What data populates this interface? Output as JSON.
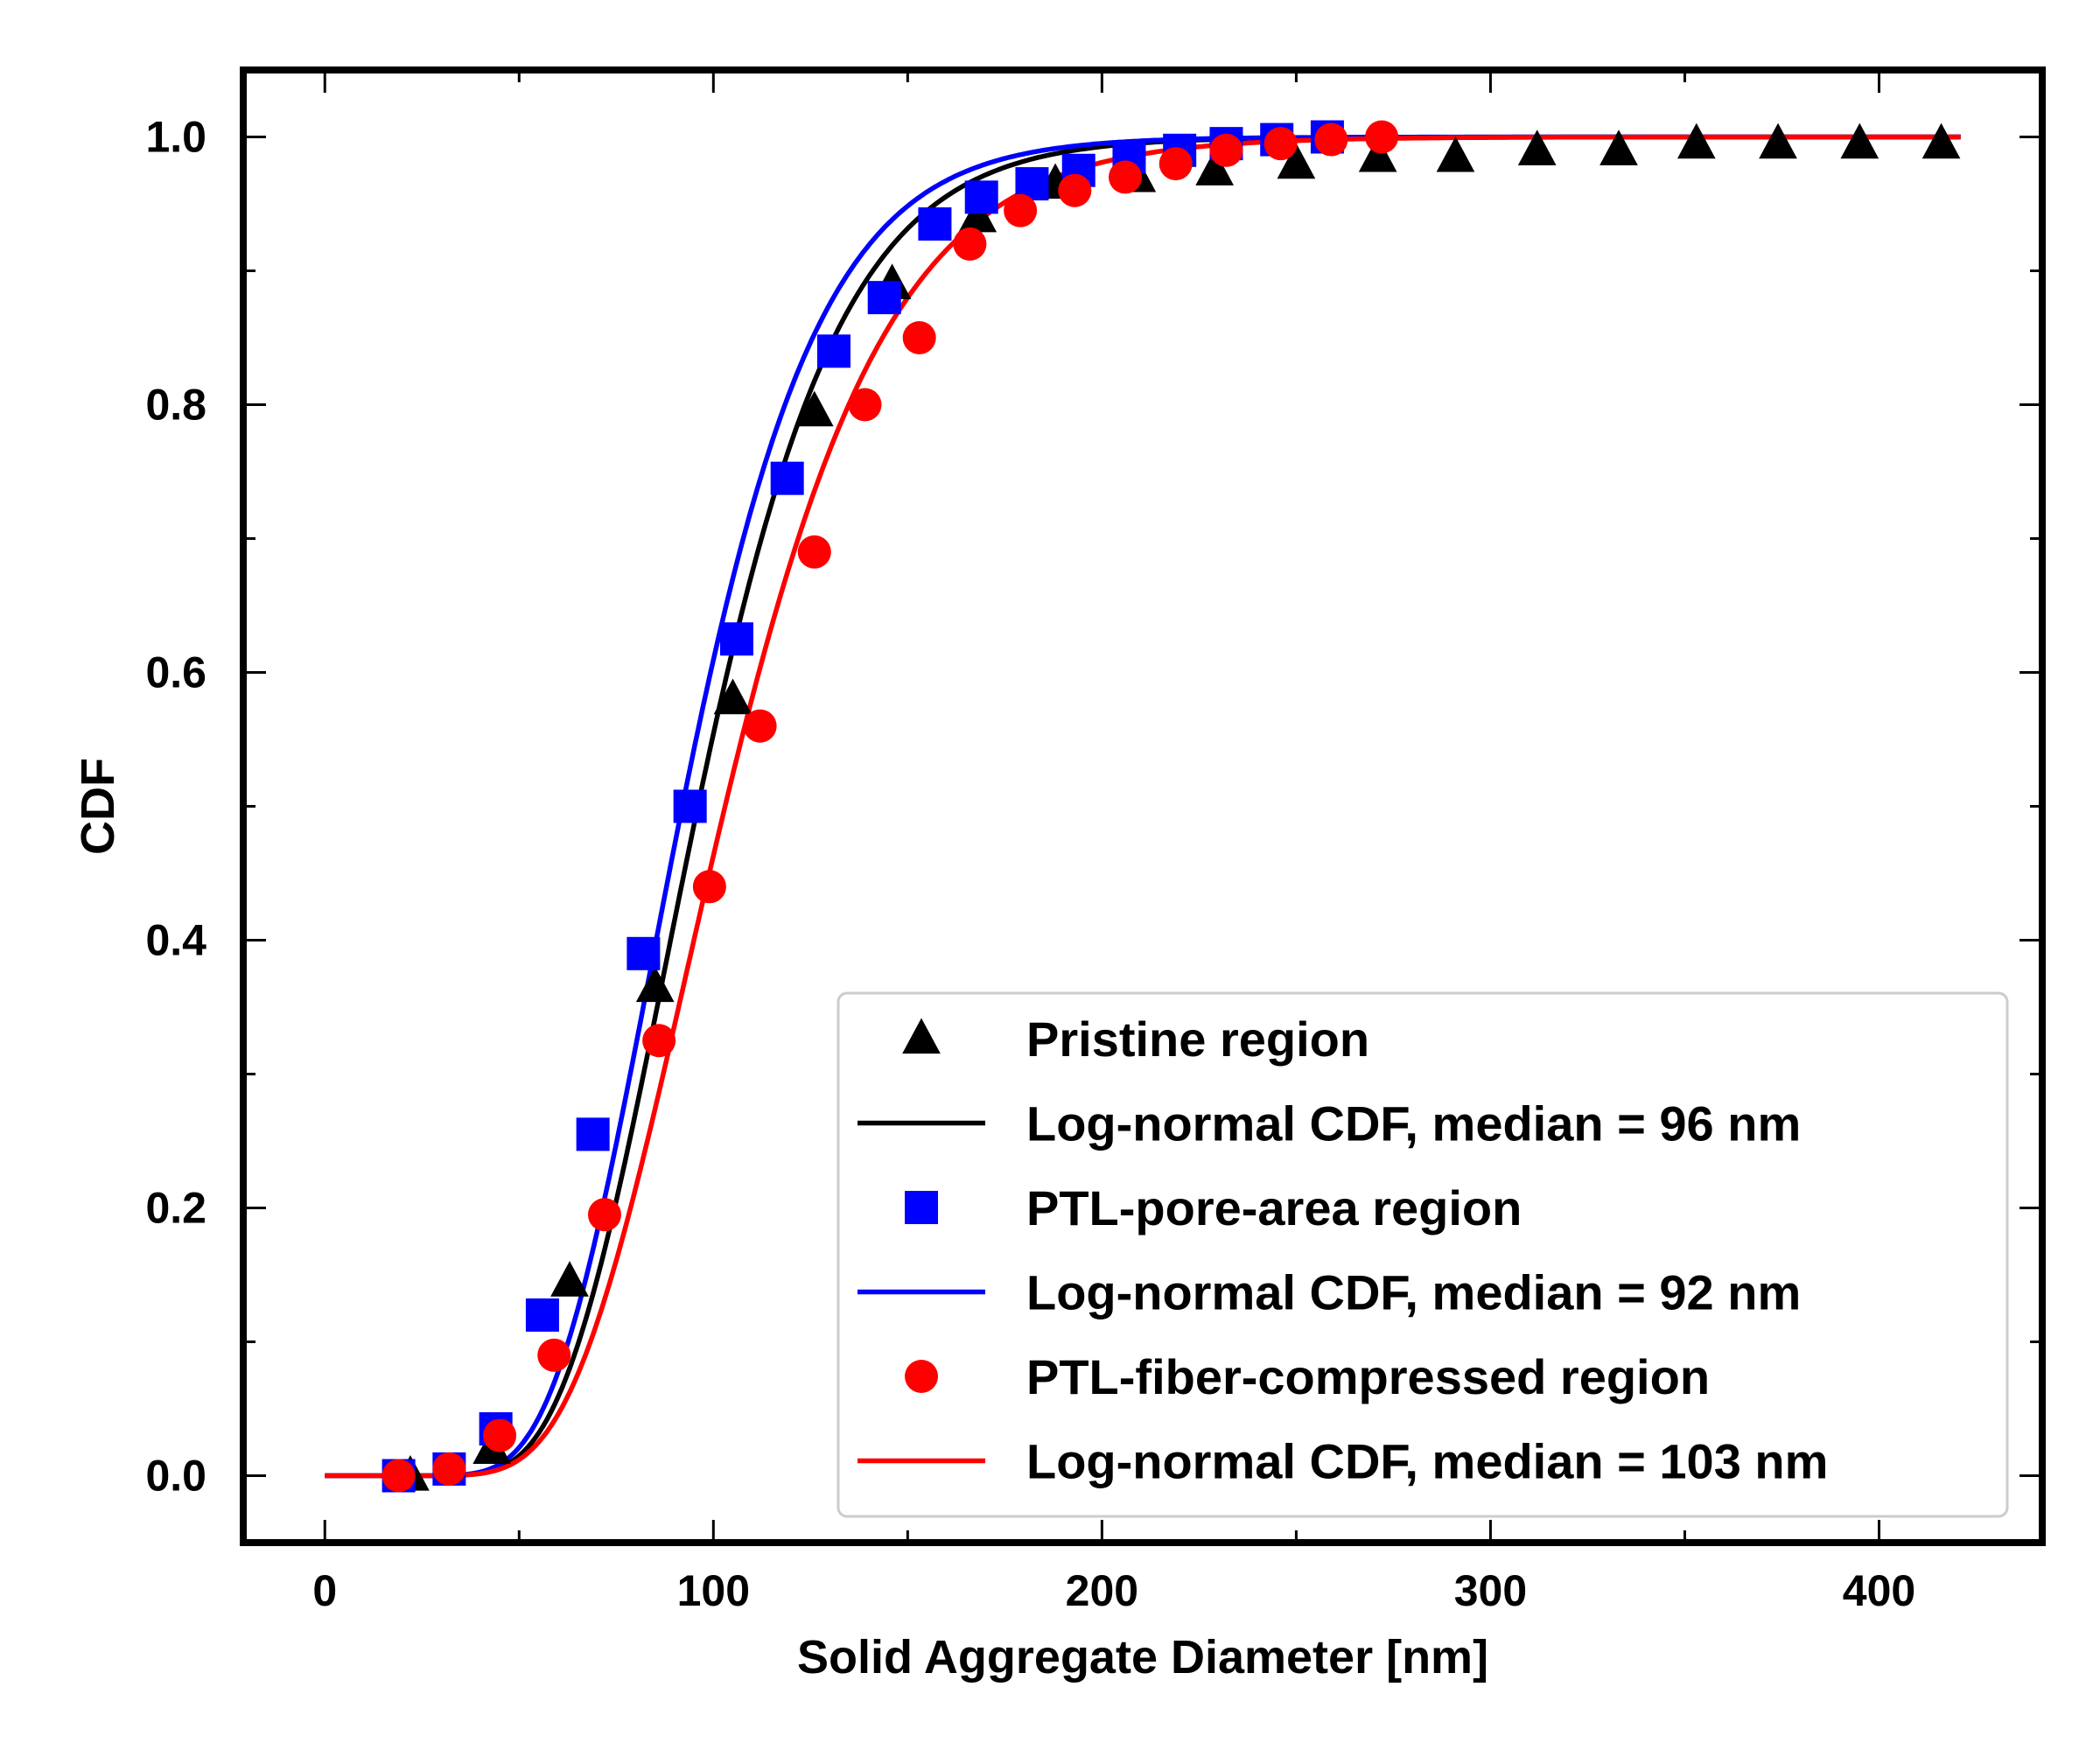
{
  "chart_data": {
    "type": "scatter",
    "xlabel": "Solid Aggregate Diameter [nm]",
    "ylabel": "CDF",
    "xlim": [
      -21,
      442
    ],
    "ylim": [
      -0.05,
      1.05
    ],
    "xticks": [
      0,
      100,
      200,
      300,
      400
    ],
    "xtick_labels": [
      "0",
      "100",
      "200",
      "300",
      "400"
    ],
    "yticks": [
      0.0,
      0.2,
      0.4,
      0.6,
      0.8,
      1.0
    ],
    "ytick_labels": [
      "0.0",
      "0.2",
      "0.4",
      "0.6",
      "0.8",
      "1.0"
    ],
    "grid": false,
    "legend_position": "lower-right",
    "series": [
      {
        "name": "Pristine region",
        "kind": "markers",
        "marker": "triangle",
        "color": "#000000",
        "x": [
          22,
          43,
          63,
          85,
          105,
          126,
          146,
          168,
          188,
          209,
          229,
          250,
          271,
          291,
          312,
          333,
          353,
          374,
          395,
          416
        ],
        "y": [
          0.0,
          0.02,
          0.145,
          0.365,
          0.58,
          0.795,
          0.89,
          0.94,
          0.965,
          0.97,
          0.975,
          0.98,
          0.985,
          0.985,
          0.99,
          0.99,
          0.995,
          0.995,
          0.995,
          0.995
        ]
      },
      {
        "name": "Log-normal CDF, median = 96 nm",
        "kind": "line",
        "color": "#000000",
        "median": 96,
        "sigma": 0.3,
        "x_range": [
          0,
          421
        ]
      },
      {
        "name": "PTL-pore-area region",
        "kind": "markers",
        "marker": "square",
        "color": "#0000ff",
        "x": [
          19,
          32,
          44,
          56,
          69,
          82,
          94,
          106,
          119,
          131,
          144,
          157,
          169,
          182,
          194,
          207,
          220,
          232,
          245,
          258
        ],
        "y": [
          0.0,
          0.005,
          0.035,
          0.12,
          0.255,
          0.39,
          0.5,
          0.625,
          0.745,
          0.84,
          0.88,
          0.935,
          0.955,
          0.965,
          0.975,
          0.985,
          0.99,
          0.995,
          0.998,
          1.0
        ]
      },
      {
        "name": "Log-normal CDF, median = 92 nm",
        "kind": "line",
        "color": "#0000ff",
        "median": 92,
        "sigma": 0.3,
        "x_range": [
          0,
          421
        ]
      },
      {
        "name": "PTL-fiber-compressed region",
        "kind": "markers",
        "marker": "circle",
        "color": "#ff0000",
        "x": [
          19,
          32,
          45,
          59,
          72,
          86,
          99,
          112,
          126,
          139,
          153,
          166,
          179,
          193,
          206,
          219,
          232,
          246,
          259,
          272
        ],
        "y": [
          0.0,
          0.005,
          0.03,
          0.09,
          0.195,
          0.325,
          0.44,
          0.56,
          0.69,
          0.8,
          0.85,
          0.92,
          0.945,
          0.96,
          0.97,
          0.98,
          0.99,
          0.995,
          0.998,
          1.0
        ]
      },
      {
        "name": "Log-normal CDF, median = 103 nm",
        "kind": "line",
        "color": "#ff0000",
        "median": 103,
        "sigma": 0.32,
        "x_range": [
          0,
          421
        ]
      }
    ]
  }
}
